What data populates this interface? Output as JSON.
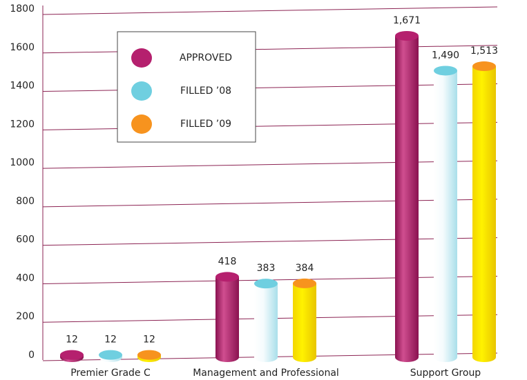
{
  "chart_data": {
    "type": "bar",
    "categories": [
      "Premier Grade C",
      "Management and Professional",
      "Support Group"
    ],
    "series": [
      {
        "name": "APPROVED",
        "color": "#b5206e",
        "values": [
          12,
          418,
          1671
        ],
        "value_labels": [
          "12",
          "418",
          "1,671"
        ]
      },
      {
        "name": "FILLED ’08",
        "color": "#6fcfe0",
        "values": [
          12,
          383,
          1490
        ],
        "value_labels": [
          "12",
          "383",
          "1,490"
        ]
      },
      {
        "name": "FILLED ’09",
        "color": "#f7931e",
        "values": [
          12,
          384,
          1513
        ],
        "value_labels": [
          "12",
          "384",
          "1,513"
        ]
      }
    ],
    "ylim": [
      0,
      1800
    ],
    "yticks": [
      0,
      200,
      400,
      600,
      800,
      1000,
      1200,
      1400,
      1600,
      1800
    ],
    "grid": true
  }
}
